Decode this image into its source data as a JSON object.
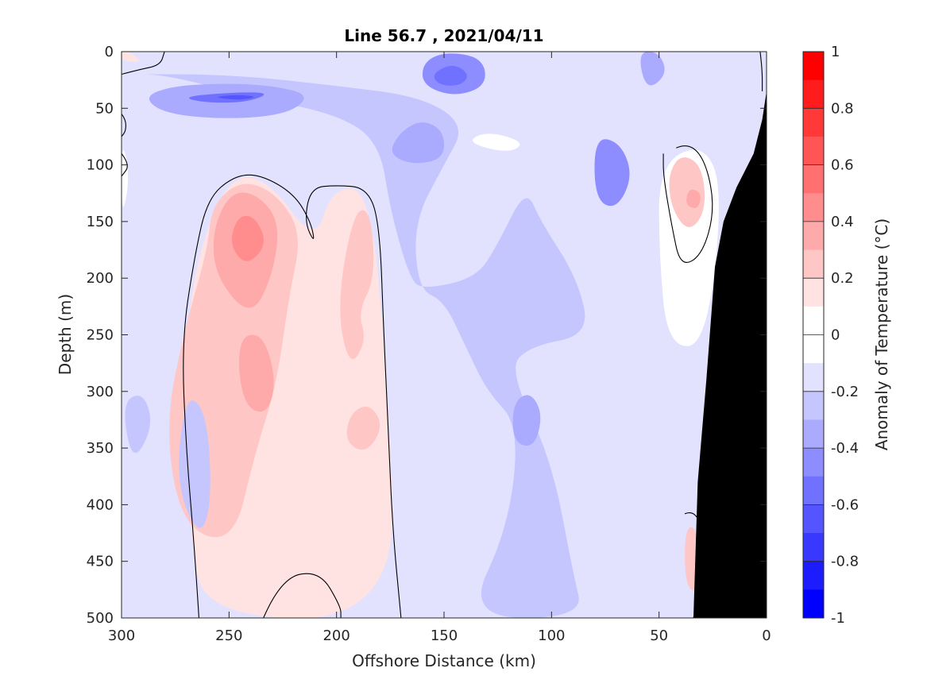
{
  "chart_data": {
    "type": "contour",
    "title": "Line 56.7 , 2021/04/11",
    "xlabel": "Offshore Distance (km)",
    "ylabel": "Depth (m)",
    "colorbar_label": "Anomaly of Temperature (°C)",
    "xlim": [
      300,
      0
    ],
    "ylim": [
      0,
      500
    ],
    "x_ticks": [
      300,
      250,
      200,
      150,
      100,
      50,
      0
    ],
    "y_ticks": [
      0,
      50,
      100,
      150,
      200,
      250,
      300,
      350,
      400,
      450,
      500
    ],
    "colorbar_ticks": [
      1,
      0.8,
      0.6,
      0.4,
      0.2,
      0,
      -0.2,
      -0.4,
      -0.6,
      -0.8,
      -1
    ],
    "colorbar_levels": [
      {
        "range": [
          0.9,
          1.0
        ],
        "color": "#ff0000"
      },
      {
        "range": [
          0.8,
          0.9
        ],
        "color": "#ff1c1c"
      },
      {
        "range": [
          0.7,
          0.8
        ],
        "color": "#ff3838"
      },
      {
        "range": [
          0.6,
          0.7
        ],
        "color": "#ff5555"
      },
      {
        "range": [
          0.5,
          0.6
        ],
        "color": "#ff7171"
      },
      {
        "range": [
          0.4,
          0.5
        ],
        "color": "#ff8d8d"
      },
      {
        "range": [
          0.3,
          0.4
        ],
        "color": "#ffaaaa"
      },
      {
        "range": [
          0.2,
          0.3
        ],
        "color": "#ffc6c6"
      },
      {
        "range": [
          0.1,
          0.2
        ],
        "color": "#ffe2e2"
      },
      {
        "range": [
          0.0,
          0.1
        ],
        "color": "#ffffff"
      },
      {
        "range": [
          -0.1,
          0.0
        ],
        "color": "#ffffff"
      },
      {
        "range": [
          -0.2,
          -0.1
        ],
        "color": "#e2e2ff"
      },
      {
        "range": [
          -0.3,
          -0.2
        ],
        "color": "#c6c6ff"
      },
      {
        "range": [
          -0.4,
          -0.3
        ],
        "color": "#aaaaff"
      },
      {
        "range": [
          -0.5,
          -0.4
        ],
        "color": "#8d8dff"
      },
      {
        "range": [
          -0.6,
          -0.5
        ],
        "color": "#7171ff"
      },
      {
        "range": [
          -0.7,
          -0.6
        ],
        "color": "#5555ff"
      },
      {
        "range": [
          -0.8,
          -0.7
        ],
        "color": "#3838ff"
      },
      {
        "range": [
          -0.9,
          -0.8
        ],
        "color": "#1c1cff"
      },
      {
        "range": [
          -1.0,
          -0.9
        ],
        "color": "#0000ff"
      }
    ],
    "field_background_anomaly": -0.15,
    "features": [
      {
        "kind": "warm",
        "level": 0.1,
        "points": [
          [
            262,
            500
          ],
          [
            268,
            420
          ],
          [
            272,
            330
          ],
          [
            270,
            250
          ],
          [
            264,
            175
          ],
          [
            250,
            110
          ],
          [
            232,
            112
          ],
          [
            210,
            170
          ],
          [
            202,
            120
          ],
          [
            184,
            122
          ],
          [
            176,
            300
          ],
          [
            172,
            500
          ]
        ]
      },
      {
        "kind": "warm",
        "level": 0.1,
        "points": [
          [
            232,
            500
          ],
          [
            225,
            465
          ],
          [
            208,
            458
          ],
          [
            198,
            500
          ]
        ]
      },
      {
        "kind": "warm",
        "level": 0.2,
        "points": [
          [
            260,
            175
          ],
          [
            258,
            135
          ],
          [
            244,
            113
          ],
          [
            228,
            125
          ],
          [
            216,
            160
          ],
          [
            222,
            215
          ],
          [
            228,
            295
          ],
          [
            238,
            355
          ],
          [
            248,
            435
          ],
          [
            272,
            420
          ],
          [
            280,
            330
          ],
          [
            270,
            240
          ]
        ]
      },
      {
        "kind": "warm",
        "level": 0.2,
        "points": [
          [
            192,
            140
          ],
          [
            184,
            140
          ],
          [
            182,
            200
          ],
          [
            190,
            230
          ],
          [
            186,
            255
          ],
          [
            194,
            280
          ],
          [
            200,
            225
          ]
        ]
      },
      {
        "kind": "warm",
        "level": 0.2,
        "points": [
          [
            194,
            320
          ],
          [
            185,
            310
          ],
          [
            178,
            330
          ],
          [
            186,
            355
          ],
          [
            196,
            345
          ]
        ]
      },
      {
        "kind": "warm",
        "level": 0.3,
        "points": [
          [
            256,
            200
          ],
          [
            258,
            160
          ],
          [
            250,
            125
          ],
          [
            238,
            124
          ],
          [
            226,
            150
          ],
          [
            230,
            200
          ],
          [
            240,
            235
          ]
        ]
      },
      {
        "kind": "warm",
        "level": 0.3,
        "points": [
          [
            244,
            250
          ],
          [
            234,
            250
          ],
          [
            228,
            290
          ],
          [
            232,
            320
          ],
          [
            242,
            315
          ],
          [
            246,
            280
          ]
        ]
      },
      {
        "kind": "warm",
        "level": 0.4,
        "points": [
          [
            250,
            170
          ],
          [
            246,
            145
          ],
          [
            238,
            145
          ],
          [
            232,
            170
          ],
          [
            242,
            190
          ]
        ]
      },
      {
        "kind": "warm",
        "level": 0.2,
        "points": [
          [
            40,
            90
          ],
          [
            30,
            100
          ],
          [
            28,
            140
          ],
          [
            36,
            160
          ],
          [
            44,
            140
          ],
          [
            46,
            110
          ]
        ]
      },
      {
        "kind": "warm",
        "level": 0.3,
        "points": [
          [
            36,
            120
          ],
          [
            30,
            125
          ],
          [
            32,
            140
          ],
          [
            38,
            135
          ]
        ]
      },
      {
        "kind": "warm",
        "level": 0.1,
        "points": [
          [
            296,
            0
          ],
          [
            300,
            0
          ],
          [
            300,
            8
          ],
          [
            290,
            10
          ]
        ]
      },
      {
        "kind": "warm",
        "level": 0.2,
        "points": [
          [
            38,
            420
          ],
          [
            32,
            420
          ],
          [
            32,
            480
          ],
          [
            38,
            470
          ]
        ]
      },
      {
        "kind": "neutral",
        "level": 0.0,
        "points": [
          [
            300,
            75
          ],
          [
            296,
            110
          ],
          [
            300,
            150
          ]
        ]
      },
      {
        "kind": "neutral",
        "level": 0.0,
        "points": [
          [
            120,
            90
          ],
          [
            140,
            80
          ],
          [
            130,
            70
          ],
          [
            112,
            80
          ]
        ]
      },
      {
        "kind": "neutral",
        "level": 0.0,
        "points": [
          [
            50,
            100
          ],
          [
            30,
            80
          ],
          [
            20,
            120
          ],
          [
            28,
            260
          ],
          [
            46,
            260
          ],
          [
            50,
            180
          ]
        ]
      },
      {
        "kind": "cool",
        "level": -0.3,
        "points": [
          [
            300,
            20
          ],
          [
            280,
            20
          ],
          [
            240,
            40
          ],
          [
            200,
            55
          ],
          [
            180,
            80
          ],
          [
            175,
            140
          ],
          [
            166,
            200
          ],
          [
            160,
            210
          ],
          [
            135,
            200
          ],
          [
            125,
            170
          ],
          [
            112,
            120
          ],
          [
            105,
            150
          ],
          [
            88,
            200
          ],
          [
            82,
            250
          ],
          [
            110,
            260
          ],
          [
            120,
            280
          ],
          [
            100,
            360
          ],
          [
            90,
            460
          ],
          [
            85,
            500
          ],
          [
            140,
            500
          ],
          [
            120,
            420
          ],
          [
            115,
            330
          ],
          [
            130,
            300
          ],
          [
            140,
            260
          ],
          [
            150,
            220
          ],
          [
            162,
            210
          ],
          [
            164,
            150
          ],
          [
            150,
            100
          ],
          [
            140,
            65
          ],
          [
            160,
            40
          ],
          [
            200,
            30
          ],
          [
            250,
            20
          ]
        ]
      },
      {
        "kind": "cool",
        "level": -0.4,
        "points": [
          [
            290,
            40
          ],
          [
            276,
            30
          ],
          [
            250,
            28
          ],
          [
            230,
            30
          ],
          [
            212,
            38
          ],
          [
            222,
            55
          ],
          [
            250,
            60
          ],
          [
            280,
            55
          ]
        ]
      },
      {
        "kind": "cool",
        "level": -0.4,
        "points": [
          [
            170,
            70
          ],
          [
            160,
            60
          ],
          [
            150,
            70
          ],
          [
            150,
            95
          ],
          [
            165,
            100
          ],
          [
            176,
            90
          ]
        ]
      },
      {
        "kind": "cool",
        "level": -0.5,
        "points": [
          [
            160,
            10
          ],
          [
            150,
            0
          ],
          [
            132,
            5
          ],
          [
            130,
            30
          ],
          [
            145,
            40
          ],
          [
            160,
            30
          ]
        ]
      },
      {
        "kind": "cool",
        "level": -0.5,
        "points": [
          [
            80,
            75
          ],
          [
            68,
            80
          ],
          [
            62,
            110
          ],
          [
            70,
            140
          ],
          [
            80,
            130
          ]
        ]
      },
      {
        "kind": "cool",
        "level": -0.4,
        "points": [
          [
            60,
            0
          ],
          [
            50,
            0
          ],
          [
            46,
            20
          ],
          [
            56,
            35
          ]
        ]
      },
      {
        "kind": "cool",
        "level": -0.4,
        "points": [
          [
            118,
            310
          ],
          [
            110,
            300
          ],
          [
            104,
            320
          ],
          [
            108,
            350
          ],
          [
            118,
            345
          ]
        ]
      },
      {
        "kind": "cool",
        "level": -0.6,
        "points": [
          [
            272,
            40
          ],
          [
            250,
            36
          ],
          [
            230,
            36
          ],
          [
            242,
            45
          ],
          [
            262,
            45
          ]
        ]
      },
      {
        "kind": "cool",
        "level": -0.6,
        "points": [
          [
            156,
            20
          ],
          [
            146,
            10
          ],
          [
            138,
            20
          ],
          [
            142,
            30
          ],
          [
            152,
            30
          ]
        ]
      },
      {
        "kind": "cool",
        "level": -0.7,
        "points": [
          [
            258,
            40
          ],
          [
            246,
            38
          ],
          [
            236,
            40
          ],
          [
            246,
            43
          ]
        ]
      },
      {
        "kind": "cool",
        "level": -0.3,
        "points": [
          [
            270,
            300
          ],
          [
            260,
            320
          ],
          [
            258,
            400
          ],
          [
            264,
            430
          ],
          [
            275,
            380
          ]
        ]
      },
      {
        "kind": "cool",
        "level": -0.25,
        "points": [
          [
            300,
            310
          ],
          [
            290,
            300
          ],
          [
            285,
            330
          ],
          [
            295,
            365
          ]
        ]
      }
    ],
    "contour_zero_lines": [
      [
        [
          264,
          500
        ],
        [
          266,
          440
        ],
        [
          270,
          350
        ],
        [
          272,
          255
        ],
        [
          266,
          180
        ],
        [
          260,
          130
        ],
        [
          248,
          110
        ],
        [
          236,
          108
        ],
        [
          220,
          125
        ],
        [
          212,
          150
        ],
        [
          210,
          170
        ],
        [
          215,
          150
        ],
        [
          212,
          120
        ],
        [
          200,
          118
        ],
        [
          186,
          120
        ],
        [
          180,
          150
        ],
        [
          178,
          250
        ],
        [
          176,
          330
        ],
        [
          174,
          420
        ],
        [
          170,
          500
        ]
      ],
      [
        [
          234,
          500
        ],
        [
          226,
          465
        ],
        [
          208,
          458
        ],
        [
          198,
          490
        ],
        [
          198,
          500
        ]
      ],
      [
        [
          42,
          85
        ],
        [
          36,
          80
        ],
        [
          28,
          98
        ],
        [
          24,
          140
        ],
        [
          30,
          180
        ],
        [
          40,
          190
        ],
        [
          44,
          155
        ],
        [
          48,
          110
        ],
        [
          48,
          90
        ]
      ],
      [
        [
          38,
          408
        ],
        [
          34,
          405
        ],
        [
          30,
          420
        ],
        [
          28,
          460
        ],
        [
          34,
          500
        ]
      ],
      [
        [
          300,
          20
        ],
        [
          292,
          16
        ],
        [
          282,
          12
        ],
        [
          280,
          0
        ]
      ],
      [
        [
          3,
          0
        ],
        [
          2,
          15
        ],
        [
          2,
          35
        ]
      ],
      [
        [
          300,
          55
        ],
        [
          298,
          60
        ],
        [
          298,
          70
        ],
        [
          300,
          75
        ]
      ],
      [
        [
          300,
          90
        ],
        [
          296,
          100
        ],
        [
          300,
          110
        ]
      ]
    ],
    "bathymetry": {
      "color": "#000000",
      "profile": [
        [
          0,
          35
        ],
        [
          2,
          60
        ],
        [
          6,
          90
        ],
        [
          14,
          120
        ],
        [
          20,
          150
        ],
        [
          24,
          190
        ],
        [
          28,
          290
        ],
        [
          32,
          380
        ],
        [
          34,
          500
        ]
      ]
    }
  }
}
